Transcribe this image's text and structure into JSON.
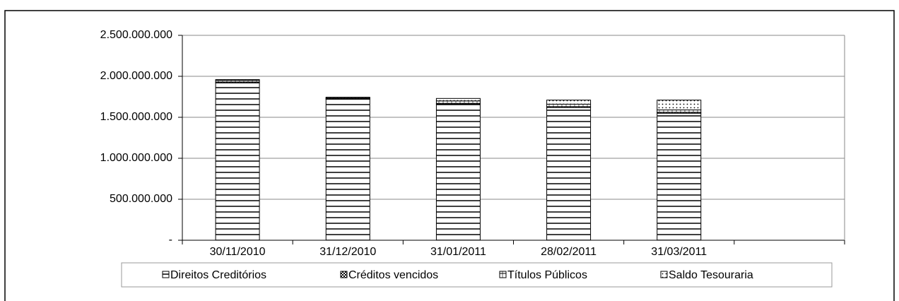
{
  "chart_data": {
    "type": "stacked_bar",
    "categories": [
      "30/11/2010",
      "31/12/2010",
      "31/01/2011",
      "28/02/2011",
      "31/03/2011",
      null
    ],
    "series": [
      {
        "name": "Direitos Creditórios",
        "color": "#000000",
        "values": [
          1920000000,
          1720000000,
          1660000000,
          1620000000,
          1550000000,
          null
        ]
      },
      {
        "name": "Créditos vencidos",
        "color": "#000000",
        "values": [
          10000000,
          10000000,
          10000000,
          10000000,
          10000000,
          null
        ]
      },
      {
        "name": "Títulos Públicos",
        "color": "#000000",
        "values": [
          20000000,
          5000000,
          30000000,
          30000000,
          30000000,
          null
        ]
      },
      {
        "name": "Saldo Tesouraria",
        "color": "#000000",
        "values": [
          10000000,
          10000000,
          30000000,
          50000000,
          120000000,
          null
        ]
      }
    ],
    "ylim": [
      0,
      2500000000
    ],
    "yticks": [
      {
        "value": 0,
        "label": "-"
      },
      {
        "value": 500000000,
        "label": "500.000.000"
      },
      {
        "value": 1000000000,
        "label": "1.000.000.000"
      },
      {
        "value": 1500000000,
        "label": "1.500.000.000"
      },
      {
        "value": 2000000000,
        "label": "2.000.000.000"
      },
      {
        "value": 2500000000,
        "label": "2.500.000.000"
      }
    ],
    "grid": true
  }
}
